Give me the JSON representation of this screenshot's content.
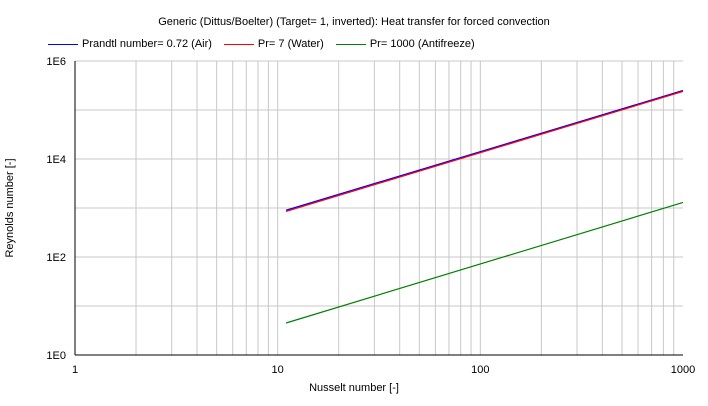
{
  "chart_data": {
    "type": "line",
    "title": "Generic (Dittus/Boelter) (Target= 1, inverted): Heat transfer for forced convection",
    "xlabel": "Nusselt number [-]",
    "ylabel": "Reynolds number [-]",
    "x_scale": "log",
    "y_scale": "log",
    "xlim": [
      1,
      1000
    ],
    "ylim": [
      1,
      1000000
    ],
    "grid": true,
    "legend_position": "top",
    "x_ticks": [
      {
        "value": 1,
        "label": "1"
      },
      {
        "value": 10,
        "label": "10"
      },
      {
        "value": 100,
        "label": "100"
      },
      {
        "value": 1000,
        "label": "1000"
      }
    ],
    "y_ticks": [
      {
        "value": 1,
        "label": "1E0"
      },
      {
        "value": 100,
        "label": "1E2"
      },
      {
        "value": 10000,
        "label": "1E4"
      },
      {
        "value": 1000000,
        "label": "1E6"
      }
    ],
    "series": [
      {
        "name": "Prandtl number= 0.72 (Air)",
        "color": "#0000ff",
        "x": [
          11,
          1000
        ],
        "y": [
          900,
          250000
        ]
      },
      {
        "name": "Pr= 7 (Water)",
        "color": "#ff0000",
        "x": [
          11,
          1000
        ],
        "y": [
          850,
          240000
        ]
      },
      {
        "name": "Pr= 1000 (Antifreeze)",
        "color": "#008000",
        "x": [
          11,
          1000
        ],
        "y": [
          4.5,
          1300
        ]
      }
    ]
  }
}
